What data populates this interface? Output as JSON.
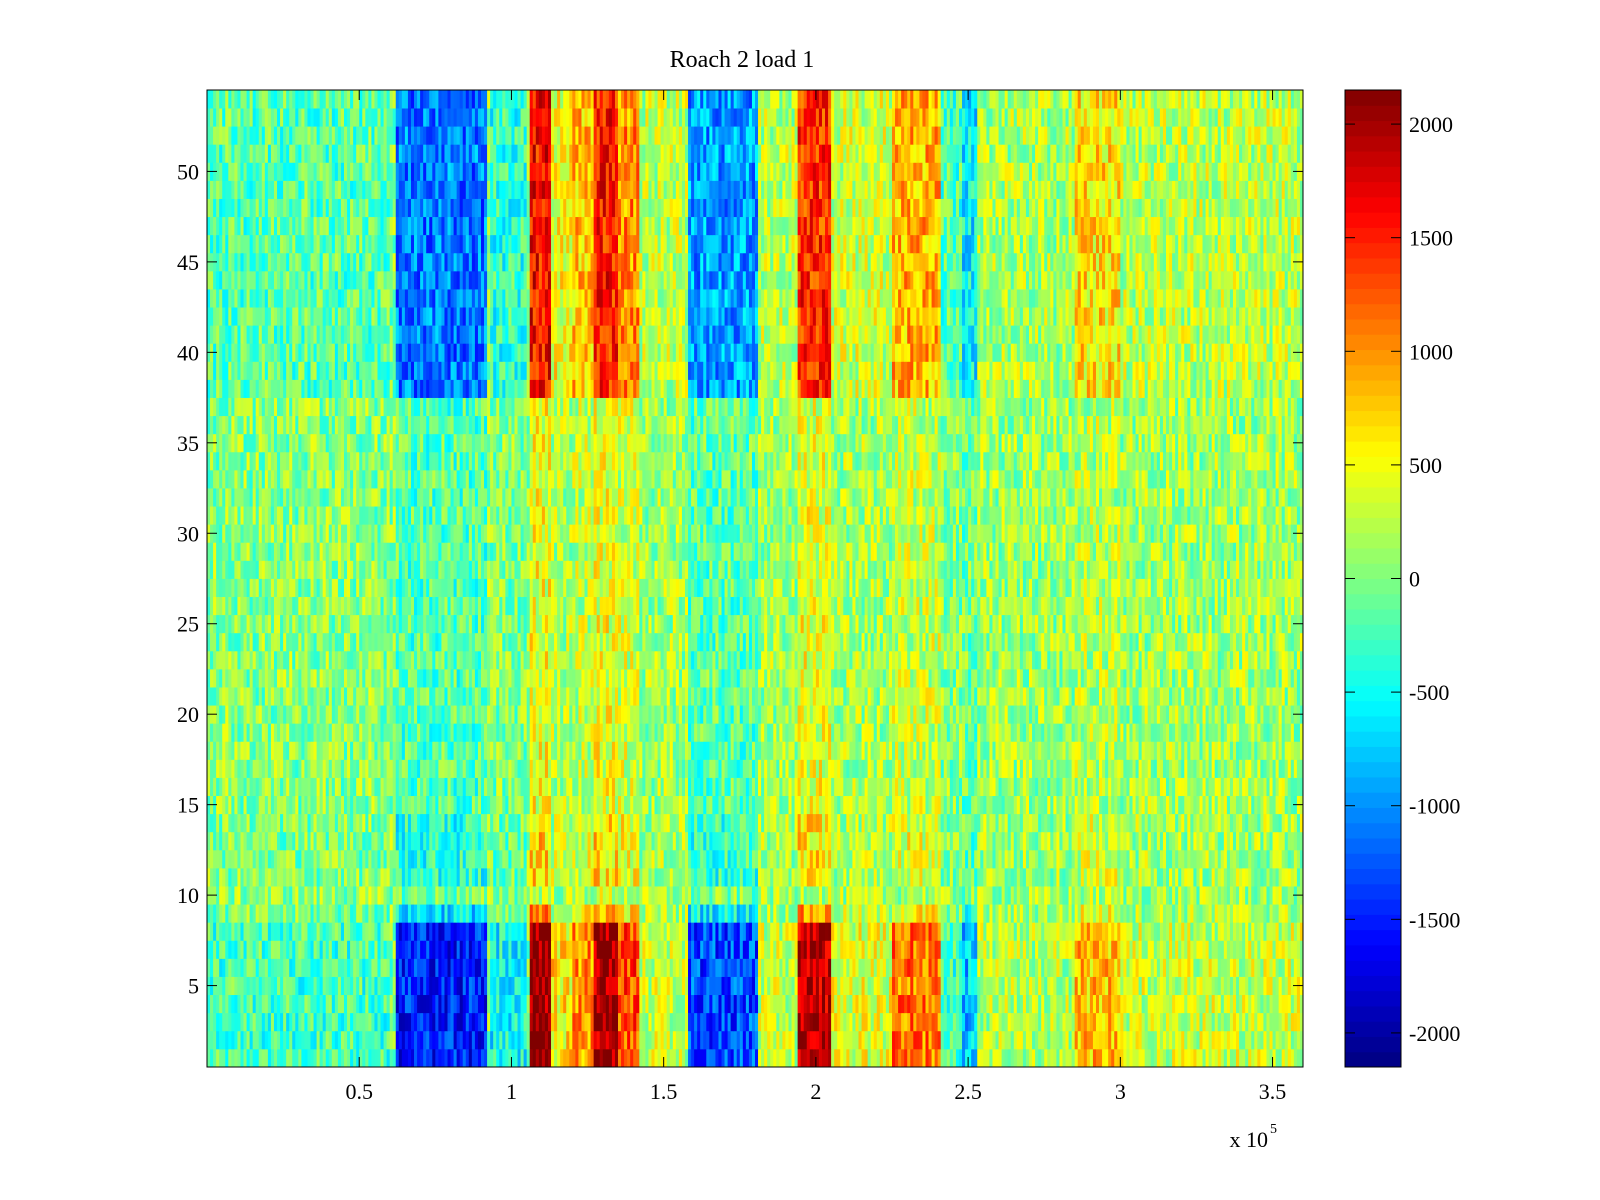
{
  "chart_data": {
    "type": "heatmap",
    "title": "Roach 2 load 1",
    "xlabel": "",
    "ylabel": "",
    "x_range": [
      0,
      360000
    ],
    "y_range": [
      0.5,
      54.5
    ],
    "rows": 54,
    "x_ticks": [
      50000,
      100000,
      150000,
      200000,
      250000,
      300000,
      350000
    ],
    "x_tick_labels": [
      "0.5",
      "1",
      "1.5",
      "2",
      "2.5",
      "3",
      "3.5"
    ],
    "x_exponent_label": "x 10",
    "x_exponent_power": "5",
    "y_ticks": [
      5,
      10,
      15,
      20,
      25,
      30,
      35,
      40,
      45,
      50
    ],
    "y_tick_labels": [
      "5",
      "10",
      "15",
      "20",
      "25",
      "30",
      "35",
      "40",
      "45",
      "50"
    ],
    "colorbar": {
      "colormap": "jet",
      "range": [
        -2150,
        2150
      ],
      "ticks": [
        2000,
        1500,
        1000,
        500,
        0,
        -500,
        -1000,
        -1500,
        -2000
      ],
      "tick_labels": [
        "2000",
        "1500",
        "1000",
        "500",
        "0",
        "-500",
        "-1000",
        "-1500",
        "-2000"
      ]
    },
    "column_bands": [
      {
        "x_start": 0,
        "x_end": 60000,
        "value": -250
      },
      {
        "x_start": 62000,
        "x_end": 92000,
        "value": -1500
      },
      {
        "x_start": 93000,
        "x_end": 105000,
        "value": -500
      },
      {
        "x_start": 106000,
        "x_end": 113000,
        "value": 2100
      },
      {
        "x_start": 113000,
        "x_end": 120000,
        "value": 600
      },
      {
        "x_start": 120000,
        "x_end": 127000,
        "value": 1000
      },
      {
        "x_start": 127000,
        "x_end": 135000,
        "value": 2000
      },
      {
        "x_start": 135000,
        "x_end": 142000,
        "value": 1300
      },
      {
        "x_start": 142000,
        "x_end": 158000,
        "value": 300
      },
      {
        "x_start": 158000,
        "x_end": 181000,
        "value": -1300
      },
      {
        "x_start": 181000,
        "x_end": 194000,
        "value": 300
      },
      {
        "x_start": 194000,
        "x_end": 205000,
        "value": 1900
      },
      {
        "x_start": 205000,
        "x_end": 225000,
        "value": 400
      },
      {
        "x_start": 225000,
        "x_end": 241000,
        "value": 1100
      },
      {
        "x_start": 241000,
        "x_end": 248000,
        "value": -300
      },
      {
        "x_start": 248000,
        "x_end": 253000,
        "value": -800
      },
      {
        "x_start": 253000,
        "x_end": 285000,
        "value": 200
      },
      {
        "x_start": 285000,
        "x_end": 300000,
        "value": 800
      },
      {
        "x_start": 300000,
        "x_end": 360000,
        "value": 300
      }
    ],
    "row_intensity": [
      {
        "y_start": 0.5,
        "y_end": 8.5,
        "factor": 1.0
      },
      {
        "y_start": 8.5,
        "y_end": 9.5,
        "factor": 0.45
      },
      {
        "y_start": 9.5,
        "y_end": 10.5,
        "factor": 0.1
      },
      {
        "y_start": 10.5,
        "y_end": 14.5,
        "factor": 0.3
      },
      {
        "y_start": 14.5,
        "y_end": 37.5,
        "factor": 0.18
      },
      {
        "y_start": 37.5,
        "y_end": 54.5,
        "factor": 0.75
      }
    ]
  }
}
